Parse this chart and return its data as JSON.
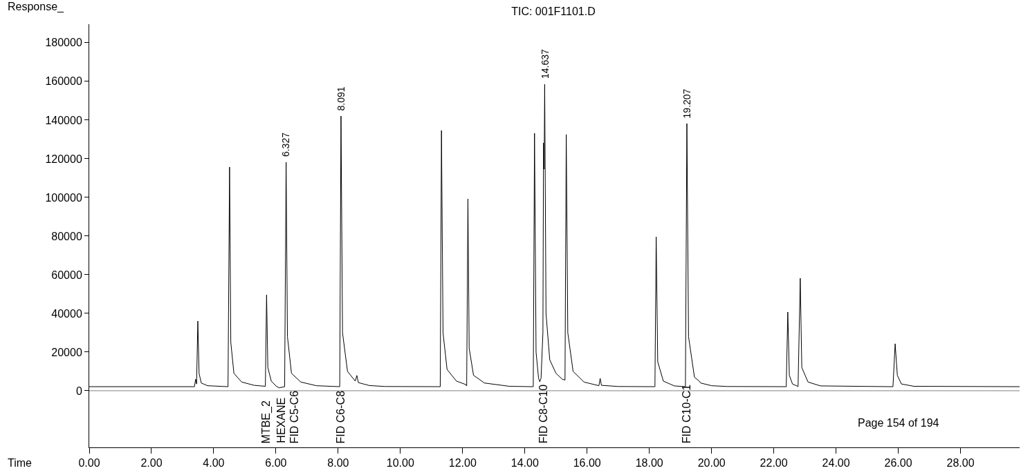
{
  "chart_data": {
    "type": "line",
    "title": "TIC: 001F1101.D",
    "xlabel": "Time",
    "ylabel": "Response_",
    "series": [
      {
        "color": "#000000",
        "x": [
          0,
          3.38,
          3.42,
          3.45,
          3.49,
          3.53,
          3.6,
          3.8,
          4.46,
          4.51,
          4.55,
          4.65,
          4.9,
          5.3,
          5.66,
          5.7,
          5.74,
          5.85,
          6.0,
          6.1,
          6.28,
          6.327,
          6.37,
          6.5,
          6.8,
          7.3,
          8.05,
          8.091,
          8.14,
          8.3,
          8.55,
          8.6,
          8.65,
          9.0,
          9.5,
          11.28,
          11.32,
          11.37,
          11.5,
          11.8,
          12.1,
          12.13,
          12.17,
          12.21,
          12.35,
          12.7,
          13.5,
          14.27,
          14.31,
          14.36,
          14.44,
          14.48,
          14.52,
          14.58,
          14.6,
          14.62,
          14.637,
          14.68,
          14.8,
          15.0,
          15.2,
          15.29,
          15.33,
          15.38,
          15.55,
          15.9,
          16.38,
          16.42,
          16.46,
          17.0,
          18.18,
          18.22,
          18.27,
          18.45,
          18.8,
          19.16,
          19.207,
          19.26,
          19.45,
          19.6,
          19.65,
          20.0,
          20.5,
          22.4,
          22.45,
          22.5,
          22.6,
          22.78,
          22.85,
          22.9,
          23.1,
          23.5,
          25.83,
          25.9,
          25.97,
          26.1,
          26.5,
          29.9
        ],
        "values": [
          2100,
          2100,
          6000,
          3500,
          36000,
          9000,
          4000,
          2600,
          2100,
          115700,
          25000,
          9000,
          4500,
          2800,
          2300,
          49600,
          12000,
          5000,
          2500,
          1500,
          2100,
          118200,
          28000,
          9000,
          4500,
          2600,
          2100,
          142100,
          30000,
          10000,
          5000,
          7900,
          4200,
          2700,
          2200,
          2100,
          134600,
          30000,
          11000,
          5000,
          3200,
          2500,
          99200,
          22000,
          8000,
          4000,
          2300,
          2100,
          133200,
          20000,
          6500,
          4600,
          6500,
          30000,
          128200,
          114600,
          158500,
          40000,
          16000,
          9000,
          6000,
          5500,
          132500,
          30000,
          10000,
          4500,
          2600,
          6400,
          2800,
          2200,
          2100,
          79600,
          15000,
          5000,
          2500,
          2100,
          138200,
          28000,
          7000,
          5000,
          4000,
          2600,
          2200,
          2100,
          40700,
          8000,
          3500,
          2200,
          58200,
          12000,
          4500,
          2500,
          2100,
          24300,
          8000,
          3500,
          2300,
          2100
        ]
      }
    ],
    "xlim": [
      0,
      29.9
    ],
    "ylim": [
      -29300,
      189600
    ],
    "xticks": [
      {
        "value": 0,
        "label": "0.00"
      },
      {
        "value": 2,
        "label": "2.00"
      },
      {
        "value": 4,
        "label": "4.00"
      },
      {
        "value": 6,
        "label": "6.00"
      },
      {
        "value": 8,
        "label": "8.00"
      },
      {
        "value": 10,
        "label": "10.00"
      },
      {
        "value": 12,
        "label": "12.00"
      },
      {
        "value": 14,
        "label": "14.00"
      },
      {
        "value": 16,
        "label": "16.00"
      },
      {
        "value": 18,
        "label": "18.00"
      },
      {
        "value": 20,
        "label": "20.00"
      },
      {
        "value": 22,
        "label": "22.00"
      },
      {
        "value": 24,
        "label": "24.00"
      },
      {
        "value": 26,
        "label": "26.00"
      },
      {
        "value": 28,
        "label": "28.00"
      }
    ],
    "yticks": [
      0,
      20000,
      40000,
      60000,
      80000,
      100000,
      120000,
      140000,
      160000,
      180000
    ],
    "ref_lines": [
      {
        "axis": "y",
        "value": 0,
        "color": "#808080"
      }
    ],
    "marker": "none",
    "line_style": "solid",
    "annotations": [
      {
        "text": "6.327",
        "x": 6.327,
        "y": 118200
      },
      {
        "text": "8.091",
        "x": 8.091,
        "y": 142100
      },
      {
        "text": "14.637",
        "x": 14.637,
        "y": 158500
      },
      {
        "text": "19.207",
        "x": 19.207,
        "y": 138200
      },
      "MTBE_2",
      "HEXANE",
      "FID C5-C6",
      "FID C6-C8",
      "FID C8-C10",
      "FID C10-C1",
      "Page 154 of 194"
    ]
  }
}
